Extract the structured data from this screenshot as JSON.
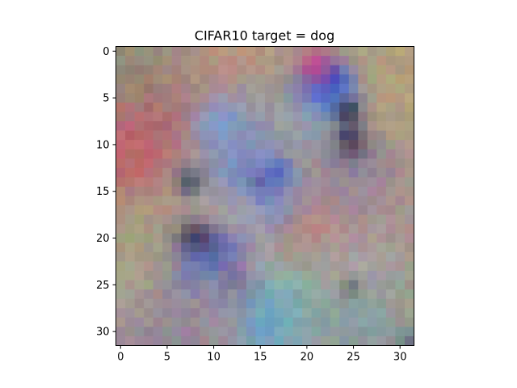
{
  "figure": {
    "title": "CIFAR10 target = dog"
  },
  "chart_data": {
    "type": "heatmap",
    "title": "CIFAR10 target = dog",
    "xlabel": "",
    "ylabel": "",
    "grid_size": [
      32,
      32
    ],
    "xlim": [
      -0.5,
      31.5
    ],
    "ylim": [
      31.5,
      -0.5
    ],
    "x_ticks": [
      0,
      5,
      10,
      15,
      20,
      25,
      30
    ],
    "y_ticks": [
      0,
      5,
      10,
      15,
      20,
      25,
      30
    ],
    "grid": false,
    "colors": {
      "background": "#a89a88",
      "frame": "#000000"
    },
    "blobs": [
      {
        "x": 24,
        "y": 3,
        "r": 6,
        "color": "#b0a078",
        "a": 0.9
      },
      {
        "x": 28,
        "y": 6,
        "r": 6,
        "color": "#b4a47c",
        "a": 0.8
      },
      {
        "x": 2,
        "y": 2,
        "r": 4,
        "color": "#8a8270",
        "a": 0.7
      },
      {
        "x": 1,
        "y": 11,
        "r": 3.5,
        "color": "#c06068",
        "a": 0.95
      },
      {
        "x": 5,
        "y": 8,
        "r": 3,
        "color": "#b85868",
        "a": 0.6
      },
      {
        "x": 12,
        "y": 2,
        "r": 3,
        "color": "#c88c78",
        "a": 0.7
      },
      {
        "x": 15,
        "y": 9,
        "r": 5,
        "color": "#909aa8",
        "a": 0.6
      },
      {
        "x": 11,
        "y": 8,
        "r": 2.2,
        "color": "#7c98d0",
        "a": 0.9
      },
      {
        "x": 12.5,
        "y": 13,
        "r": 1.8,
        "color": "#5c78c8",
        "a": 0.8
      },
      {
        "x": 14,
        "y": 11,
        "r": 2.2,
        "color": "#7080c8",
        "a": 0.7
      },
      {
        "x": 22,
        "y": 4.5,
        "r": 2.3,
        "color": "#4070e0",
        "a": 1.0
      },
      {
        "x": 22.5,
        "y": 3,
        "r": 1.2,
        "color": "#3050c0",
        "a": 1.0
      },
      {
        "x": 21,
        "y": 1.5,
        "r": 1.5,
        "color": "#c04890",
        "a": 0.9
      },
      {
        "x": 20,
        "y": 8,
        "r": 2,
        "color": "#90a0b0",
        "a": 0.7
      },
      {
        "x": 24.5,
        "y": 9,
        "r": 0.9,
        "color": "#101830",
        "a": 1.0
      },
      {
        "x": 24.5,
        "y": 6.5,
        "r": 0.9,
        "color": "#2a2850",
        "a": 1.0
      },
      {
        "x": 25.5,
        "y": 12,
        "r": 2.5,
        "color": "#6070a0",
        "a": 0.7
      },
      {
        "x": 25,
        "y": 10.5,
        "r": 0.9,
        "color": "#301838",
        "a": 1.0
      },
      {
        "x": 15.3,
        "y": 14.5,
        "r": 1.1,
        "color": "#0a0a60",
        "a": 1.0
      },
      {
        "x": 16.5,
        "y": 16,
        "r": 2.3,
        "color": "#6080e0",
        "a": 0.8
      },
      {
        "x": 17,
        "y": 13,
        "r": 1,
        "color": "#4060d0",
        "a": 0.9
      },
      {
        "x": 7.5,
        "y": 14,
        "r": 1,
        "color": "#303050",
        "a": 0.9
      },
      {
        "x": 12,
        "y": 16,
        "r": 4,
        "color": "#a8a8b8",
        "a": 0.5
      },
      {
        "x": 21,
        "y": 20,
        "r": 3,
        "color": "#c87878",
        "a": 0.6
      },
      {
        "x": 24.5,
        "y": 14,
        "r": 3,
        "color": "#9880a0",
        "a": 0.5
      },
      {
        "x": 29,
        "y": 15.5,
        "r": 4,
        "color": "#a88a98",
        "a": 0.6
      },
      {
        "x": 8,
        "y": 20.5,
        "r": 1.4,
        "color": "#201830",
        "a": 1.0
      },
      {
        "x": 10,
        "y": 22,
        "r": 1.2,
        "color": "#2a2040",
        "a": 1.0
      },
      {
        "x": 7.5,
        "y": 23.5,
        "r": 2.2,
        "color": "#5060d0",
        "a": 0.8
      },
      {
        "x": 11.5,
        "y": 22.5,
        "r": 2,
        "color": "#6070d8",
        "a": 0.8
      },
      {
        "x": 13.5,
        "y": 24.5,
        "r": 1.4,
        "color": "#602848",
        "a": 0.9
      },
      {
        "x": 14.5,
        "y": 23,
        "r": 1.5,
        "color": "#c090b0",
        "a": 0.8
      },
      {
        "x": 17,
        "y": 26,
        "r": 2.5,
        "color": "#90c0a0",
        "a": 0.7
      },
      {
        "x": 22,
        "y": 25,
        "r": 3,
        "color": "#98b098",
        "a": 0.6
      },
      {
        "x": 25,
        "y": 24,
        "r": 2,
        "color": "#d0a8a0",
        "a": 0.6
      },
      {
        "x": 24.8,
        "y": 25.5,
        "r": 0.8,
        "color": "#403a2a",
        "a": 0.9
      },
      {
        "x": 3,
        "y": 24,
        "r": 3,
        "color": "#b8b088",
        "a": 0.7
      },
      {
        "x": 0.5,
        "y": 20,
        "r": 3,
        "color": "#a09878",
        "a": 0.6
      },
      {
        "x": 15.5,
        "y": 29,
        "r": 3.5,
        "color": "#5ca8d8",
        "a": 0.8
      },
      {
        "x": 26,
        "y": 29,
        "r": 4,
        "color": "#7aa0a8",
        "a": 0.7
      },
      {
        "x": 5,
        "y": 30,
        "r": 4,
        "color": "#8a80a0",
        "a": 0.7
      },
      {
        "x": 31,
        "y": 31,
        "r": 1,
        "color": "#607080",
        "a": 0.8
      },
      {
        "x": 10,
        "y": 28,
        "r": 3,
        "color": "#a08898",
        "a": 0.5
      },
      {
        "x": 27,
        "y": 22,
        "r": 3,
        "color": "#a0a0a8",
        "a": 0.5
      }
    ]
  }
}
